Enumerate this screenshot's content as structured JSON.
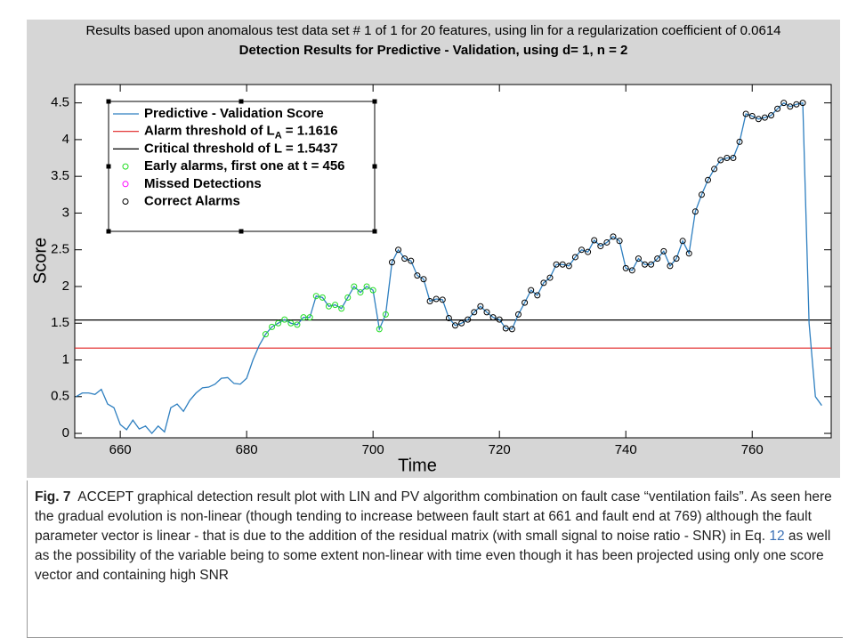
{
  "chart_data": {
    "type": "line",
    "title": "Results based upon anomalous test data set # 1 of 1 for 20 features, using lin for a regularization coefficient of 0.0614",
    "subtitle": "Detection Results for Predictive - Validation, using d= 1, n = 2",
    "xlabel": "Time",
    "ylabel": "Score",
    "xlim": [
      652.8,
      772.5
    ],
    "ylim": [
      -0.06,
      4.75
    ],
    "xticks": [
      660,
      680,
      700,
      720,
      740,
      760
    ],
    "yticks": [
      0,
      0.5,
      1,
      1.5,
      2,
      2.5,
      3,
      3.5,
      4,
      4.5
    ],
    "x": [
      653,
      654,
      655,
      656,
      657,
      658,
      659,
      660,
      661,
      662,
      663,
      664,
      665,
      666,
      667,
      668,
      669,
      670,
      671,
      672,
      673,
      674,
      675,
      676,
      677,
      678,
      679,
      680,
      681,
      682,
      683,
      684,
      685,
      686,
      687,
      688,
      689,
      690,
      691,
      692,
      693,
      694,
      695,
      696,
      697,
      698,
      699,
      700,
      701,
      702,
      703,
      704,
      705,
      706,
      707,
      708,
      709,
      710,
      711,
      712,
      713,
      714,
      715,
      716,
      717,
      718,
      719,
      720,
      721,
      722,
      723,
      724,
      725,
      726,
      727,
      728,
      729,
      730,
      731,
      732,
      733,
      734,
      735,
      736,
      737,
      738,
      739,
      740,
      741,
      742,
      743,
      744,
      745,
      746,
      747,
      748,
      749,
      750,
      751,
      752,
      753,
      754,
      755,
      756,
      757,
      758,
      759,
      760,
      761,
      762,
      763,
      764,
      765,
      766,
      767,
      768,
      769,
      770,
      771
    ],
    "series": [
      {
        "name": "Predictive - Validation Score",
        "color": "#2e7fc0",
        "values": [
          0.5,
          0.55,
          0.55,
          0.53,
          0.6,
          0.4,
          0.35,
          0.12,
          0.05,
          0.18,
          0.06,
          0.1,
          0,
          0.1,
          0.02,
          0.35,
          0.4,
          0.3,
          0.45,
          0.55,
          0.62,
          0.63,
          0.67,
          0.75,
          0.76,
          0.68,
          0.67,
          0.75,
          1.0,
          1.2,
          1.35,
          1.45,
          1.5,
          1.55,
          1.5,
          1.48,
          1.58,
          1.58,
          1.87,
          1.85,
          1.73,
          1.75,
          1.7,
          1.85,
          2.0,
          1.92,
          2.0,
          1.95,
          1.42,
          1.62,
          2.33,
          2.5,
          2.38,
          2.35,
          2.15,
          2.1,
          1.8,
          1.83,
          1.82,
          1.57,
          1.47,
          1.5,
          1.55,
          1.65,
          1.73,
          1.65,
          1.58,
          1.55,
          1.43,
          1.42,
          1.62,
          1.78,
          1.95,
          1.88,
          2.05,
          2.12,
          2.3,
          2.3,
          2.28,
          2.4,
          2.5,
          2.47,
          2.63,
          2.55,
          2.6,
          2.68,
          2.62,
          2.25,
          2.22,
          2.38,
          2.3,
          2.3,
          2.38,
          2.48,
          2.28,
          2.38,
          2.62,
          2.45,
          3.02,
          3.25,
          3.45,
          3.6,
          3.72,
          3.75,
          3.75,
          3.97,
          4.35,
          4.32,
          4.28,
          4.3,
          4.33,
          4.42,
          4.5,
          4.45,
          4.48,
          4.5,
          1.5,
          0.5,
          0.38
        ]
      }
    ],
    "thresholds": [
      {
        "name": "Alarm threshold of L",
        "subscript": "A",
        "suffix": " = 1.1616",
        "color": "#e02020",
        "value": 1.1616
      },
      {
        "name": "Critical threshold of L = 1.5437",
        "color": "#000000",
        "value": 1.5437
      }
    ],
    "markers": [
      {
        "name": "Early alarms, first one at t = 456",
        "color": "#22dd22",
        "x": [
          683,
          684,
          685,
          686,
          687,
          688,
          689,
          690,
          691,
          692,
          693,
          694,
          695,
          696,
          697,
          698,
          699,
          700,
          701,
          702
        ],
        "values": [
          1.35,
          1.45,
          1.5,
          1.55,
          1.5,
          1.48,
          1.58,
          1.58,
          1.87,
          1.85,
          1.73,
          1.75,
          1.7,
          1.85,
          2.0,
          1.92,
          2.0,
          1.95,
          1.42,
          1.62
        ]
      },
      {
        "name": "Missed Detections",
        "color": "#ff00ff",
        "x": [],
        "values": []
      },
      {
        "name": "Correct Alarms",
        "color": "#000000",
        "x": [
          703,
          704,
          705,
          706,
          707,
          708,
          709,
          710,
          711,
          712,
          713,
          714,
          715,
          716,
          717,
          718,
          719,
          720,
          721,
          722,
          723,
          724,
          725,
          726,
          727,
          728,
          729,
          730,
          731,
          732,
          733,
          734,
          735,
          736,
          737,
          738,
          739,
          740,
          741,
          742,
          743,
          744,
          745,
          746,
          747,
          748,
          749,
          750,
          751,
          752,
          753,
          754,
          755,
          756,
          757,
          758,
          759,
          760,
          761,
          762,
          763,
          764,
          765,
          766,
          767,
          768
        ],
        "values": [
          2.33,
          2.5,
          2.38,
          2.35,
          2.15,
          2.1,
          1.8,
          1.83,
          1.82,
          1.57,
          1.47,
          1.5,
          1.55,
          1.65,
          1.73,
          1.65,
          1.58,
          1.55,
          1.43,
          1.42,
          1.62,
          1.78,
          1.95,
          1.88,
          2.05,
          2.12,
          2.3,
          2.3,
          2.28,
          2.4,
          2.5,
          2.47,
          2.63,
          2.55,
          2.6,
          2.68,
          2.62,
          2.25,
          2.22,
          2.38,
          2.3,
          2.3,
          2.38,
          2.48,
          2.28,
          2.38,
          2.62,
          2.45,
          3.02,
          3.25,
          3.45,
          3.6,
          3.72,
          3.75,
          3.75,
          3.97,
          4.35,
          4.32,
          4.28,
          4.3,
          4.33,
          4.42,
          4.5,
          4.45,
          4.48,
          4.5
        ]
      }
    ]
  },
  "caption": {
    "label": "Fig. 7",
    "text": "ACCEPT graphical detection result plot with LIN and PV algorithm combination on fault case “ventilation fails”. As seen here the gradual evolution is non-linear (though tending to increase between fault start at 661 and fault end at 769) although the fault parameter vector is linear - that is due to the addition of the residual matrix (with small signal to noise ratio - SNR) in Eq.",
    "ref": "12",
    "text_after": "as well as the possibility of the variable being to some extent non-linear with time even though it has been projected using only one score vector and containing high SNR"
  }
}
